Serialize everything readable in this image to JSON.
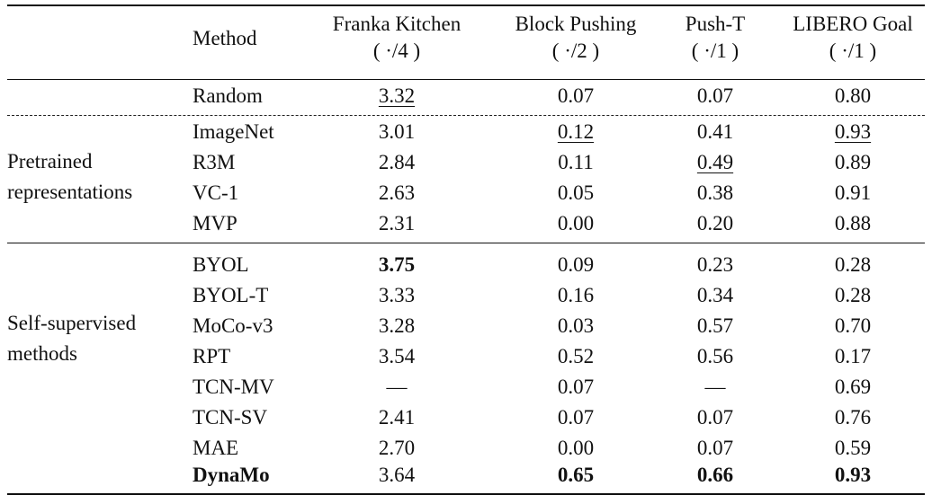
{
  "header": {
    "method": "Method",
    "columns": [
      {
        "title": "Franka Kitchen",
        "sub": "( ·/4 )"
      },
      {
        "title": "Block Pushing",
        "sub": "( ·/2 )"
      },
      {
        "title": "Push-T",
        "sub": "( ·/1 )"
      },
      {
        "title": "LIBERO Goal",
        "sub": "( ·/1 )"
      }
    ]
  },
  "groups": {
    "pretrained": {
      "line1": "Pretrained",
      "line2": "representations"
    },
    "selfsup": {
      "line1": "Self-supervised",
      "line2": "methods"
    }
  },
  "rows": [
    {
      "method": "Random",
      "values": [
        "3.32",
        "0.07",
        "0.07",
        "0.80"
      ]
    },
    {
      "method": "ImageNet",
      "values": [
        "3.01",
        "0.12",
        "0.41",
        "0.93"
      ]
    },
    {
      "method": "R3M",
      "values": [
        "2.84",
        "0.11",
        "0.49",
        "0.89"
      ]
    },
    {
      "method": "VC-1",
      "values": [
        "2.63",
        "0.05",
        "0.38",
        "0.91"
      ]
    },
    {
      "method": "MVP",
      "values": [
        "2.31",
        "0.00",
        "0.20",
        "0.88"
      ]
    },
    {
      "method": "BYOL",
      "values": [
        "3.75",
        "0.09",
        "0.23",
        "0.28"
      ]
    },
    {
      "method": "BYOL-T",
      "values": [
        "3.33",
        "0.16",
        "0.34",
        "0.28"
      ]
    },
    {
      "method": "MoCo-v3",
      "values": [
        "3.28",
        "0.03",
        "0.57",
        "0.70"
      ]
    },
    {
      "method": "RPT",
      "values": [
        "3.54",
        "0.52",
        "0.56",
        "0.17"
      ]
    },
    {
      "method": "TCN-MV",
      "values": [
        "—",
        "0.07",
        "—",
        "0.69"
      ]
    },
    {
      "method": "TCN-SV",
      "values": [
        "2.41",
        "0.07",
        "0.07",
        "0.76"
      ]
    },
    {
      "method": "MAE",
      "values": [
        "2.70",
        "0.00",
        "0.07",
        "0.59"
      ]
    },
    {
      "method": "DynaMo",
      "values": [
        "3.64",
        "0.65",
        "0.66",
        "0.93"
      ]
    }
  ]
}
